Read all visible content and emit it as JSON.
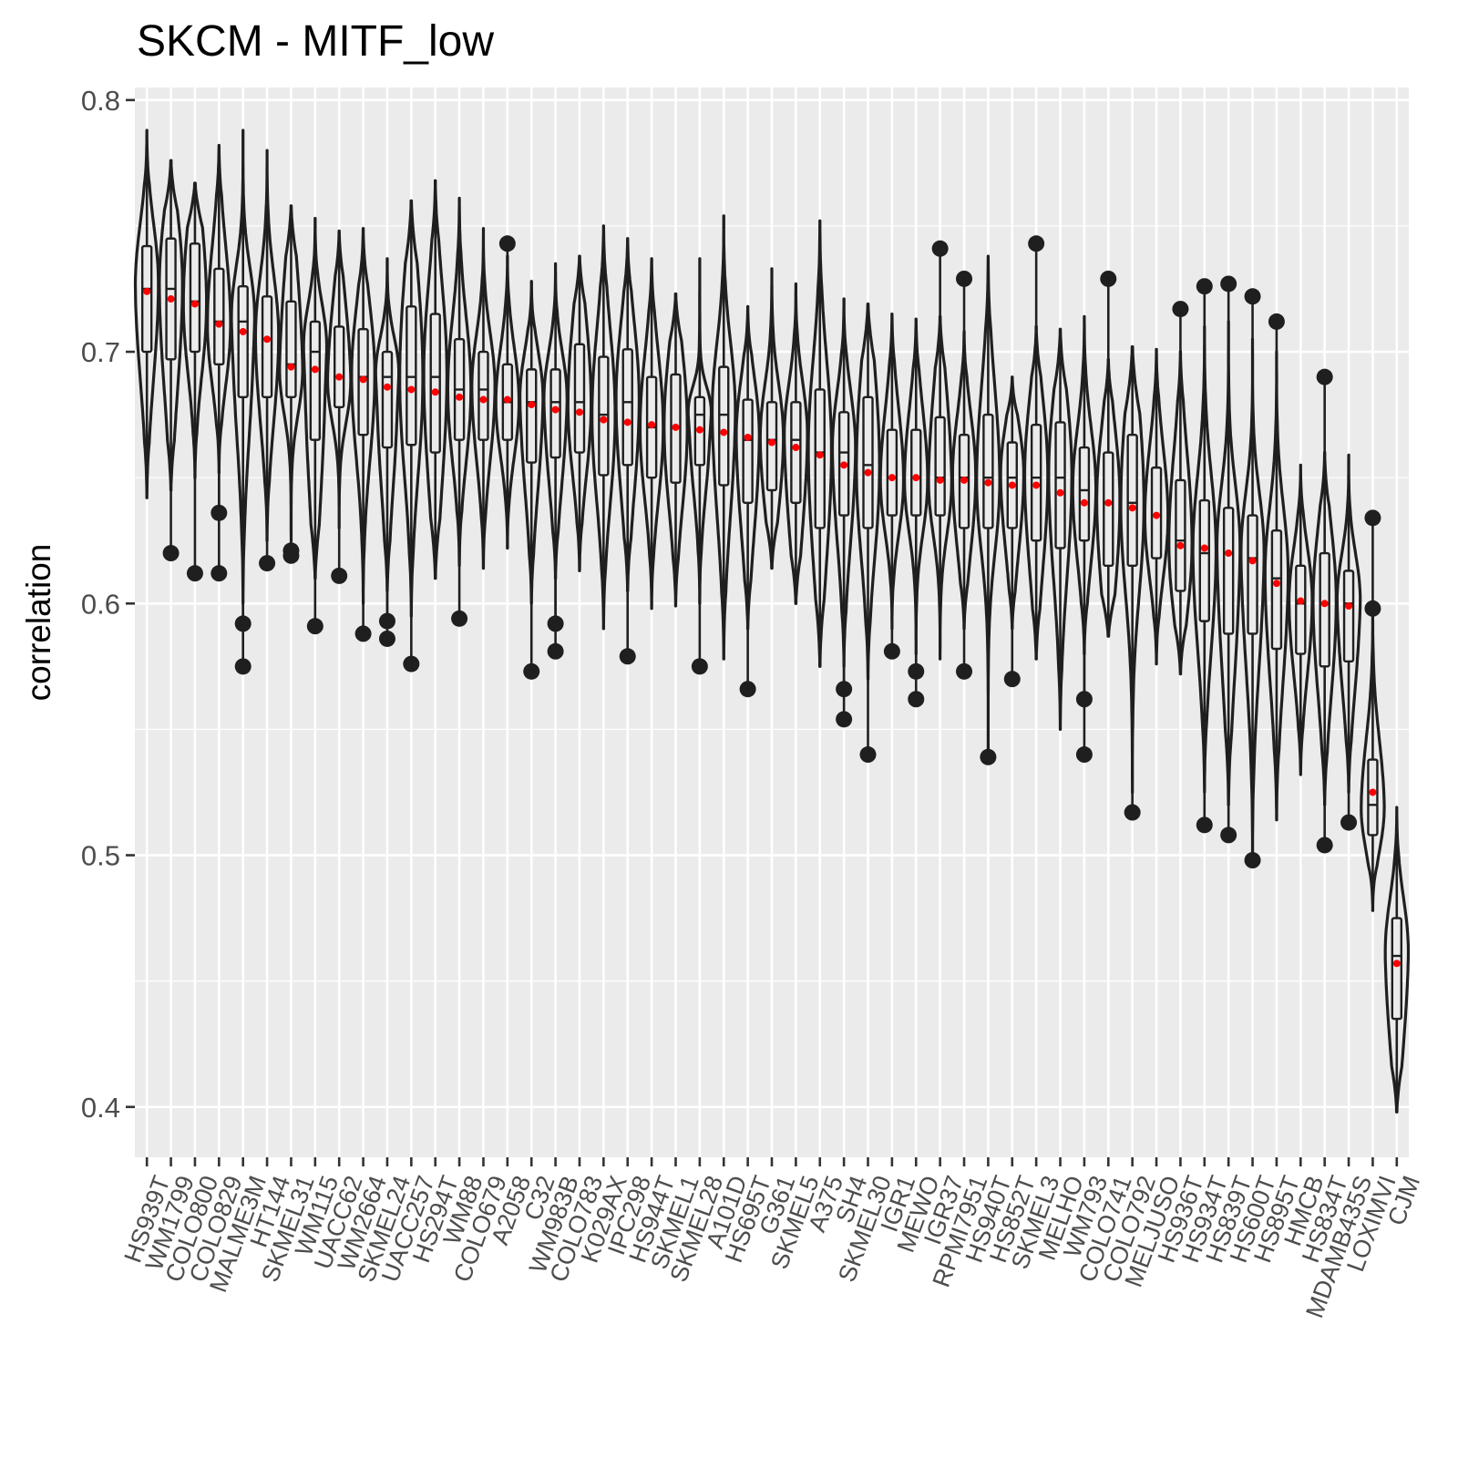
{
  "chart_data": {
    "type": "violin",
    "title": "SKCM - MITF_low",
    "xlabel": "",
    "ylabel": "correlation",
    "ylim": [
      0.38,
      0.805
    ],
    "yticks": [
      0.4,
      0.5,
      0.6,
      0.7,
      0.8
    ],
    "ytick_labels": [
      "0.4",
      "0.5",
      "0.6",
      "0.7",
      "0.8"
    ],
    "grid": true,
    "mean_marker_color": "#ff0000",
    "series": [
      {
        "name": "HS939T",
        "min": 0.642,
        "max": 0.788,
        "q1": 0.7,
        "median": 0.725,
        "q3": 0.742,
        "mean": 0.724,
        "outliers": []
      },
      {
        "name": "WM1799",
        "min": 0.645,
        "max": 0.776,
        "q1": 0.697,
        "median": 0.725,
        "q3": 0.745,
        "mean": 0.721,
        "outliers": [
          0.62
        ]
      },
      {
        "name": "COLO800",
        "min": 0.65,
        "max": 0.767,
        "q1": 0.7,
        "median": 0.72,
        "q3": 0.743,
        "mean": 0.719,
        "outliers": [
          0.612
        ]
      },
      {
        "name": "COLO829",
        "min": 0.652,
        "max": 0.782,
        "q1": 0.695,
        "median": 0.712,
        "q3": 0.733,
        "mean": 0.711,
        "outliers": [
          0.636,
          0.612
        ]
      },
      {
        "name": "MALME3M",
        "min": 0.6,
        "max": 0.788,
        "q1": 0.682,
        "median": 0.712,
        "q3": 0.726,
        "mean": 0.708,
        "outliers": [
          0.592,
          0.575
        ]
      },
      {
        "name": "HT144",
        "min": 0.625,
        "max": 0.78,
        "q1": 0.682,
        "median": 0.705,
        "q3": 0.722,
        "mean": 0.705,
        "outliers": [
          0.616
        ]
      },
      {
        "name": "SKMEL31",
        "min": 0.625,
        "max": 0.758,
        "q1": 0.682,
        "median": 0.695,
        "q3": 0.72,
        "mean": 0.694,
        "outliers": [
          0.621,
          0.619
        ]
      },
      {
        "name": "WM115",
        "min": 0.61,
        "max": 0.753,
        "q1": 0.665,
        "median": 0.7,
        "q3": 0.712,
        "mean": 0.693,
        "outliers": [
          0.591
        ]
      },
      {
        "name": "UACC62",
        "min": 0.63,
        "max": 0.748,
        "q1": 0.678,
        "median": 0.69,
        "q3": 0.71,
        "mean": 0.69,
        "outliers": [
          0.611
        ]
      },
      {
        "name": "WM2664",
        "min": 0.6,
        "max": 0.749,
        "q1": 0.667,
        "median": 0.69,
        "q3": 0.709,
        "mean": 0.689,
        "outliers": [
          0.588
        ]
      },
      {
        "name": "SKMEL24",
        "min": 0.605,
        "max": 0.737,
        "q1": 0.662,
        "median": 0.69,
        "q3": 0.7,
        "mean": 0.686,
        "outliers": [
          0.593,
          0.586
        ]
      },
      {
        "name": "UACC257",
        "min": 0.595,
        "max": 0.76,
        "q1": 0.663,
        "median": 0.69,
        "q3": 0.718,
        "mean": 0.685,
        "outliers": [
          0.576
        ]
      },
      {
        "name": "HS294T",
        "min": 0.61,
        "max": 0.768,
        "q1": 0.66,
        "median": 0.69,
        "q3": 0.715,
        "mean": 0.684,
        "outliers": []
      },
      {
        "name": "WM88",
        "min": 0.615,
        "max": 0.761,
        "q1": 0.665,
        "median": 0.685,
        "q3": 0.705,
        "mean": 0.682,
        "outliers": [
          0.594
        ]
      },
      {
        "name": "COLO679",
        "min": 0.614,
        "max": 0.749,
        "q1": 0.665,
        "median": 0.685,
        "q3": 0.7,
        "mean": 0.681,
        "outliers": []
      },
      {
        "name": "A2058",
        "min": 0.622,
        "max": 0.738,
        "q1": 0.665,
        "median": 0.68,
        "q3": 0.695,
        "mean": 0.681,
        "outliers": [
          0.743
        ]
      },
      {
        "name": "C32",
        "min": 0.6,
        "max": 0.728,
        "q1": 0.656,
        "median": 0.68,
        "q3": 0.693,
        "mean": 0.679,
        "outliers": [
          0.573
        ]
      },
      {
        "name": "WM983B",
        "min": 0.61,
        "max": 0.735,
        "q1": 0.658,
        "median": 0.68,
        "q3": 0.693,
        "mean": 0.677,
        "outliers": [
          0.592,
          0.581
        ]
      },
      {
        "name": "COLO783",
        "min": 0.613,
        "max": 0.738,
        "q1": 0.66,
        "median": 0.68,
        "q3": 0.703,
        "mean": 0.676,
        "outliers": []
      },
      {
        "name": "K029AX",
        "min": 0.59,
        "max": 0.75,
        "q1": 0.651,
        "median": 0.675,
        "q3": 0.698,
        "mean": 0.673,
        "outliers": []
      },
      {
        "name": "IPC298",
        "min": 0.605,
        "max": 0.745,
        "q1": 0.655,
        "median": 0.68,
        "q3": 0.701,
        "mean": 0.672,
        "outliers": [
          0.579
        ]
      },
      {
        "name": "HS944T",
        "min": 0.598,
        "max": 0.737,
        "q1": 0.65,
        "median": 0.67,
        "q3": 0.69,
        "mean": 0.671,
        "outliers": []
      },
      {
        "name": "SKMEL1",
        "min": 0.599,
        "max": 0.723,
        "q1": 0.648,
        "median": 0.67,
        "q3": 0.691,
        "mean": 0.67,
        "outliers": []
      },
      {
        "name": "SKMEL28",
        "min": 0.6,
        "max": 0.737,
        "q1": 0.655,
        "median": 0.675,
        "q3": 0.682,
        "mean": 0.669,
        "outliers": [
          0.575
        ]
      },
      {
        "name": "A101D",
        "min": 0.578,
        "max": 0.754,
        "q1": 0.647,
        "median": 0.675,
        "q3": 0.694,
        "mean": 0.668,
        "outliers": []
      },
      {
        "name": "HS695T",
        "min": 0.59,
        "max": 0.718,
        "q1": 0.64,
        "median": 0.665,
        "q3": 0.681,
        "mean": 0.666,
        "outliers": [
          0.566
        ]
      },
      {
        "name": "G361",
        "min": 0.614,
        "max": 0.733,
        "q1": 0.645,
        "median": 0.665,
        "q3": 0.68,
        "mean": 0.664,
        "outliers": []
      },
      {
        "name": "SKMEL5",
        "min": 0.6,
        "max": 0.727,
        "q1": 0.64,
        "median": 0.665,
        "q3": 0.68,
        "mean": 0.662,
        "outliers": []
      },
      {
        "name": "A375",
        "min": 0.575,
        "max": 0.752,
        "q1": 0.63,
        "median": 0.66,
        "q3": 0.685,
        "mean": 0.659,
        "outliers": []
      },
      {
        "name": "SH4",
        "min": 0.575,
        "max": 0.721,
        "q1": 0.635,
        "median": 0.66,
        "q3": 0.676,
        "mean": 0.655,
        "outliers": [
          0.566,
          0.554
        ]
      },
      {
        "name": "SKMEL30",
        "min": 0.57,
        "max": 0.719,
        "q1": 0.63,
        "median": 0.655,
        "q3": 0.682,
        "mean": 0.652,
        "outliers": [
          0.54
        ]
      },
      {
        "name": "IGR1",
        "min": 0.59,
        "max": 0.715,
        "q1": 0.635,
        "median": 0.65,
        "q3": 0.669,
        "mean": 0.65,
        "outliers": [
          0.581
        ]
      },
      {
        "name": "MEWO",
        "min": 0.58,
        "max": 0.713,
        "q1": 0.635,
        "median": 0.65,
        "q3": 0.669,
        "mean": 0.65,
        "outliers": [
          0.573,
          0.562
        ]
      },
      {
        "name": "IGR37",
        "min": 0.578,
        "max": 0.714,
        "q1": 0.635,
        "median": 0.65,
        "q3": 0.674,
        "mean": 0.649,
        "outliers": [
          0.741
        ]
      },
      {
        "name": "RPMI7951",
        "min": 0.59,
        "max": 0.708,
        "q1": 0.63,
        "median": 0.65,
        "q3": 0.667,
        "mean": 0.649,
        "outliers": [
          0.729,
          0.573
        ]
      },
      {
        "name": "HS940T",
        "min": 0.54,
        "max": 0.738,
        "q1": 0.63,
        "median": 0.65,
        "q3": 0.675,
        "mean": 0.648,
        "outliers": [
          0.539
        ]
      },
      {
        "name": "HS852T",
        "min": 0.59,
        "max": 0.69,
        "q1": 0.63,
        "median": 0.65,
        "q3": 0.664,
        "mean": 0.647,
        "outliers": [
          0.57
        ]
      },
      {
        "name": "SKMEL3",
        "min": 0.578,
        "max": 0.71,
        "q1": 0.625,
        "median": 0.65,
        "q3": 0.671,
        "mean": 0.647,
        "outliers": [
          0.743
        ]
      },
      {
        "name": "MELHO",
        "min": 0.55,
        "max": 0.709,
        "q1": 0.622,
        "median": 0.65,
        "q3": 0.672,
        "mean": 0.644,
        "outliers": []
      },
      {
        "name": "WM793",
        "min": 0.58,
        "max": 0.714,
        "q1": 0.625,
        "median": 0.645,
        "q3": 0.662,
        "mean": 0.64,
        "outliers": [
          0.562,
          0.54
        ]
      },
      {
        "name": "COLO741",
        "min": 0.587,
        "max": 0.697,
        "q1": 0.615,
        "median": 0.64,
        "q3": 0.66,
        "mean": 0.64,
        "outliers": [
          0.729
        ]
      },
      {
        "name": "COLO792",
        "min": 0.525,
        "max": 0.702,
        "q1": 0.615,
        "median": 0.64,
        "q3": 0.667,
        "mean": 0.638,
        "outliers": [
          0.517
        ]
      },
      {
        "name": "MELJUSO",
        "min": 0.576,
        "max": 0.701,
        "q1": 0.618,
        "median": 0.635,
        "q3": 0.654,
        "mean": 0.635,
        "outliers": []
      },
      {
        "name": "HS936T",
        "min": 0.572,
        "max": 0.7,
        "q1": 0.605,
        "median": 0.625,
        "q3": 0.649,
        "mean": 0.623,
        "outliers": [
          0.717
        ]
      },
      {
        "name": "HS934T",
        "min": 0.525,
        "max": 0.71,
        "q1": 0.593,
        "median": 0.62,
        "q3": 0.641,
        "mean": 0.622,
        "outliers": [
          0.726,
          0.512
        ]
      },
      {
        "name": "HS839T",
        "min": 0.52,
        "max": 0.712,
        "q1": 0.588,
        "median": 0.62,
        "q3": 0.638,
        "mean": 0.62,
        "outliers": [
          0.727,
          0.508
        ]
      },
      {
        "name": "HS600T",
        "min": 0.5,
        "max": 0.705,
        "q1": 0.588,
        "median": 0.618,
        "q3": 0.635,
        "mean": 0.617,
        "outliers": [
          0.722,
          0.498
        ]
      },
      {
        "name": "HS895T",
        "min": 0.514,
        "max": 0.7,
        "q1": 0.582,
        "median": 0.61,
        "q3": 0.629,
        "mean": 0.608,
        "outliers": [
          0.712
        ]
      },
      {
        "name": "HMCB",
        "min": 0.532,
        "max": 0.655,
        "q1": 0.58,
        "median": 0.6,
        "q3": 0.615,
        "mean": 0.601,
        "outliers": []
      },
      {
        "name": "HS834T",
        "min": 0.52,
        "max": 0.66,
        "q1": 0.575,
        "median": 0.6,
        "q3": 0.62,
        "mean": 0.6,
        "outliers": [
          0.69,
          0.504
        ]
      },
      {
        "name": "MDAMB435S",
        "min": 0.525,
        "max": 0.659,
        "q1": 0.577,
        "median": 0.6,
        "q3": 0.613,
        "mean": 0.599,
        "outliers": [
          0.513
        ]
      },
      {
        "name": "LOXIMVI",
        "min": 0.478,
        "max": 0.596,
        "q1": 0.508,
        "median": 0.52,
        "q3": 0.538,
        "mean": 0.525,
        "outliers": [
          0.634,
          0.598
        ]
      },
      {
        "name": "CJM",
        "min": 0.398,
        "max": 0.519,
        "q1": 0.435,
        "median": 0.46,
        "q3": 0.475,
        "mean": 0.457,
        "outliers": []
      }
    ]
  }
}
